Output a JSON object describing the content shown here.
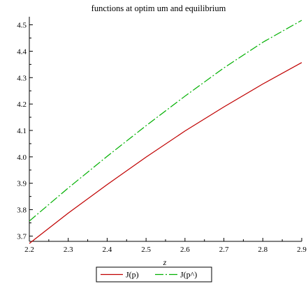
{
  "chart_data": {
    "type": "line",
    "title": "functions at optim um and equilibrium",
    "xlabel": "z",
    "ylabel": "",
    "xlim": [
      2.2,
      2.9
    ],
    "ylim": [
      3.68,
      4.52
    ],
    "x_ticks": [
      "2.2",
      "2.3",
      "2.4",
      "2.5",
      "2.6",
      "2.7",
      "2.8",
      "2.9"
    ],
    "y_ticks": [
      "3.7",
      "3.8",
      "3.9",
      "4.0",
      "4.1",
      "4.2",
      "4.3",
      "4.4",
      "4.5"
    ],
    "grid": false,
    "legend_position": "bottom",
    "x": [
      2.2,
      2.3,
      2.4,
      2.5,
      2.6,
      2.7,
      2.8,
      2.9
    ],
    "series": [
      {
        "name": "J(p)",
        "color": "#c00000",
        "dash": "solid",
        "values": [
          3.672,
          3.787,
          3.895,
          3.999,
          4.098,
          4.189,
          4.276,
          4.357
        ]
      },
      {
        "name": "J(p^)",
        "color": "#00b000",
        "dash": "dashed",
        "values": [
          3.757,
          3.882,
          4.002,
          4.118,
          4.23,
          4.337,
          4.434,
          4.517
        ]
      }
    ]
  }
}
